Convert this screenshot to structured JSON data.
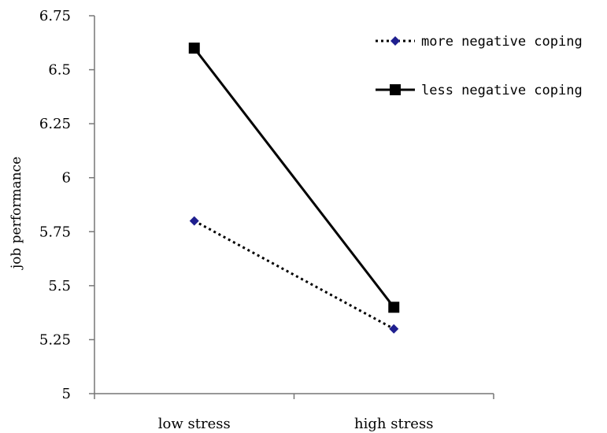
{
  "chart_data": {
    "type": "line",
    "title": "",
    "xlabel": "",
    "ylabel": "job performance",
    "categories": [
      "low stress",
      "high stress"
    ],
    "ylim": [
      5,
      6.75
    ],
    "yticks": [
      "5",
      "5.25",
      "5.5",
      "5.75",
      "6",
      "6.25",
      "6.5",
      "6.75"
    ],
    "grid": false,
    "legend_position": "top-right",
    "series": [
      {
        "name": "more negative coping",
        "values": [
          5.8,
          5.3
        ],
        "line_style": "dotted",
        "marker": "diamond",
        "line_color": "#000000",
        "marker_color": "#1f1f8f"
      },
      {
        "name": "less negative coping",
        "values": [
          6.6,
          5.4
        ],
        "line_style": "solid",
        "marker": "square",
        "line_color": "#000000",
        "marker_color": "#000000"
      }
    ]
  }
}
